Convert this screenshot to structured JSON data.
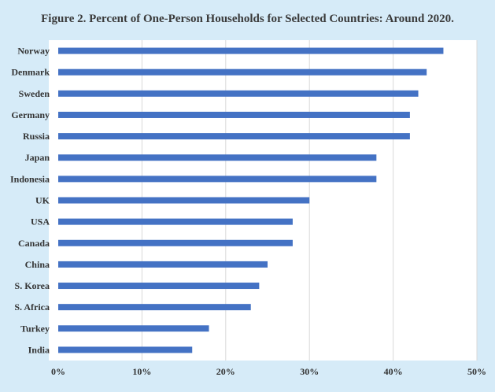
{
  "chart_data": {
    "type": "bar",
    "orientation": "horizontal",
    "title": "Figure 2. Percent of One-Person Households for Selected Countries: Around 2020.",
    "categories": [
      "Norway",
      "Denmark",
      "Sweden",
      "Germany",
      "Russia",
      "Japan",
      "Indonesia",
      "UK",
      "USA",
      "Canada",
      "China",
      "S. Korea",
      "S. Africa",
      "Turkey",
      "India"
    ],
    "values": [
      46,
      44,
      43,
      42,
      42,
      38,
      38,
      30,
      28,
      28,
      25,
      24,
      23,
      18,
      16
    ],
    "xlim": [
      0,
      50
    ],
    "xticks": [
      "0%",
      "10%",
      "20%",
      "30%",
      "40%",
      "50%"
    ],
    "grid": true,
    "bar_color": "#4472c4",
    "background_color": "#d6ebf8"
  }
}
